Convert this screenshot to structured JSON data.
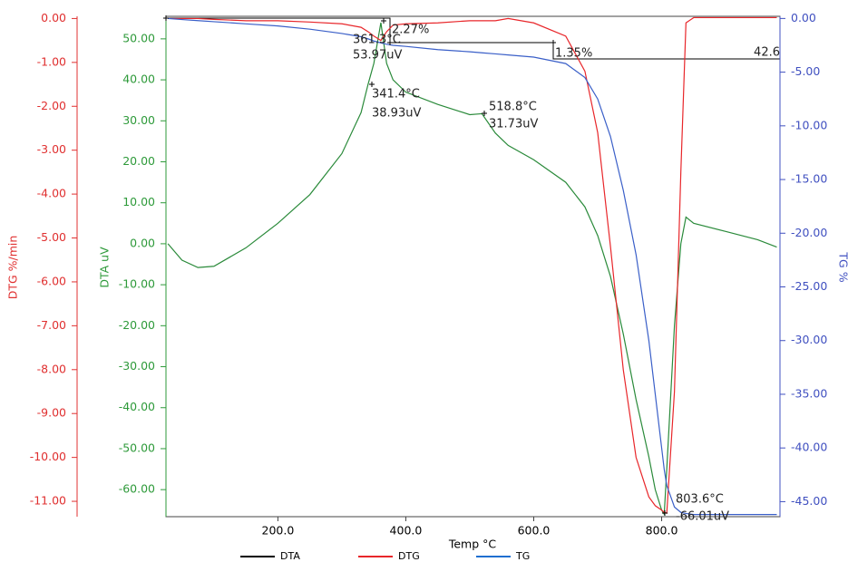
{
  "chart_data": {
    "type": "line",
    "x_label": "Temp °C",
    "y_label": "DTA uV",
    "y2_label": "TG %",
    "y3_label": "DTG %/min",
    "x": [
      28,
      50,
      75,
      100,
      150,
      200,
      250,
      300,
      330,
      341,
      350,
      361,
      370,
      380,
      400,
      450,
      500,
      519,
      540,
      560,
      600,
      650,
      680,
      700,
      720,
      740,
      760,
      780,
      790,
      800,
      804,
      808,
      820,
      830,
      838,
      850,
      900,
      950,
      980
    ],
    "xlim": [
      25,
      985
    ],
    "xticks": [
      {
        "value": 200,
        "label": "200.0"
      },
      {
        "value": 400,
        "label": "400.0"
      },
      {
        "value": 600,
        "label": "600.0"
      },
      {
        "value": 800,
        "label": "800.0"
      }
    ],
    "ylim": [
      -66.6,
      55.5
    ],
    "yticks": [
      {
        "value": 50,
        "label": "50.00"
      },
      {
        "value": 40,
        "label": "40.00"
      },
      {
        "value": 30,
        "label": "30.00"
      },
      {
        "value": 20,
        "label": "20.00"
      },
      {
        "value": 10,
        "label": "10.00"
      },
      {
        "value": 0,
        "label": "0.00"
      },
      {
        "value": -10,
        "label": "-10.00"
      },
      {
        "value": -20,
        "label": "-20.00"
      },
      {
        "value": -30,
        "label": "-30.00"
      },
      {
        "value": -40,
        "label": "-40.00"
      },
      {
        "value": -50,
        "label": "-50.00"
      },
      {
        "value": -60,
        "label": "-60.00"
      }
    ],
    "y2lim": [
      -46.4,
      0.2
    ],
    "y2ticks": [
      {
        "value": 0,
        "label": "0.00"
      },
      {
        "value": -5,
        "label": "-5.00"
      },
      {
        "value": -10,
        "label": "-10.00"
      },
      {
        "value": -15,
        "label": "-15.00"
      },
      {
        "value": -20,
        "label": "-20.00"
      },
      {
        "value": -25,
        "label": "-25.00"
      },
      {
        "value": -30,
        "label": "-30.00"
      },
      {
        "value": -35,
        "label": "-35.00"
      },
      {
        "value": -40,
        "label": "-40.00"
      },
      {
        "value": -45,
        "label": "-45.00"
      }
    ],
    "y3lim": [
      -11.35,
      0.05
    ],
    "y3ticks": [
      {
        "value": 0,
        "label": "0.00"
      },
      {
        "value": -1,
        "label": "-1.00"
      },
      {
        "value": -2,
        "label": "-2.00"
      },
      {
        "value": -3,
        "label": "-3.00"
      },
      {
        "value": -4,
        "label": "-4.00"
      },
      {
        "value": -5,
        "label": "-5.00"
      },
      {
        "value": -6,
        "label": "-6.00"
      },
      {
        "value": -7,
        "label": "-7.00"
      },
      {
        "value": -8,
        "label": "-8.00"
      },
      {
        "value": -9,
        "label": "-9.00"
      },
      {
        "value": -10,
        "label": "-10.00"
      },
      {
        "value": -11,
        "label": "-11.00"
      }
    ],
    "series": [
      {
        "name": "DTA",
        "color": "#2a8a3a",
        "legend_color": "#000000",
        "axis": "y",
        "values": [
          0,
          -4,
          -5.8,
          -5.5,
          -1,
          5,
          12,
          22,
          32,
          38.93,
          44,
          53.97,
          44,
          40,
          37,
          34,
          31.5,
          31.73,
          27,
          24,
          20.5,
          15,
          9,
          2,
          -8,
          -22,
          -38,
          -52,
          -60,
          -65,
          -66.01,
          -55,
          -20,
          0,
          6.5,
          5,
          3,
          1,
          -0.8
        ]
      },
      {
        "name": "DTG",
        "color": "#e8262a",
        "legend_color": "#e8262a",
        "axis": "y3",
        "values": [
          0,
          0,
          0,
          -0.02,
          -0.05,
          -0.05,
          -0.08,
          -0.12,
          -0.2,
          -0.3,
          -0.4,
          -0.5,
          -0.3,
          -0.15,
          -0.12,
          -0.1,
          -0.05,
          -0.05,
          -0.05,
          0,
          -0.1,
          -0.4,
          -1.2,
          -2.6,
          -5.2,
          -8,
          -10,
          -10.9,
          -11.1,
          -11.2,
          -11.25,
          -11.27,
          -8.5,
          -3.5,
          -0.1,
          0.02,
          0.02,
          0.02,
          0.02
        ]
      },
      {
        "name": "TG",
        "color": "#3a5fc8",
        "legend_color": "#1f6fd0",
        "axis": "y2",
        "values": [
          0,
          -0.1,
          -0.2,
          -0.3,
          -0.5,
          -0.7,
          -1,
          -1.4,
          -1.7,
          -1.9,
          -2.1,
          -2.27,
          -2.4,
          -2.5,
          -2.6,
          -2.9,
          -3.1,
          -3.2,
          -3.3,
          -3.4,
          -3.6,
          -4.2,
          -5.5,
          -7.5,
          -11,
          -16,
          -22,
          -30,
          -35,
          -40,
          -42,
          -43.5,
          -45.5,
          -46,
          -46.1,
          -46.2,
          -46.2,
          -46.2,
          -46.2
        ]
      }
    ],
    "annotations": [
      "361.3°C",
      "53.97uV",
      "2.27%",
      "341.4°C",
      "38.93uV",
      "518.8°C",
      "31.73uV",
      "1.35%",
      "42.6",
      "803.6°C",
      "-66.01uV"
    ]
  }
}
